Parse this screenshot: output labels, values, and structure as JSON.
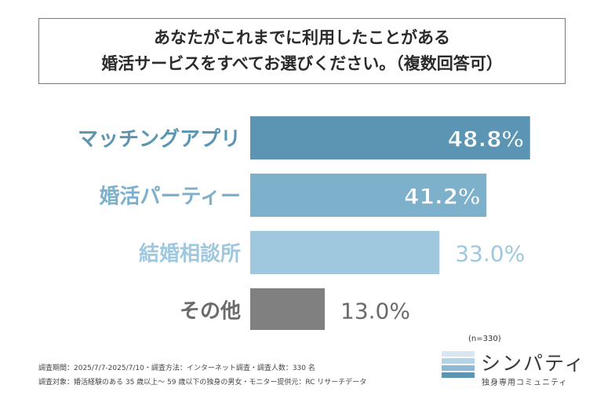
{
  "title": {
    "line1": "あなたがこれまでに利用したことがある",
    "line2": "婚活サービスをすべてお選びください。（複数回答可）"
  },
  "chart_data": {
    "type": "bar",
    "orientation": "horizontal",
    "categories": [
      "マッチングアプリ",
      "婚活パーティー",
      "結婚相談所",
      "その他"
    ],
    "values": [
      48.8,
      41.2,
      33.0,
      13.0
    ],
    "value_labels": [
      "48.8%",
      "41.2%",
      "33.0%",
      "13.0%"
    ],
    "bar_colors": [
      "#5b95b3",
      "#7cb0cb",
      "#9fc8de",
      "#808080"
    ],
    "label_colors": [
      "#5b95b3",
      "#7cb0cb",
      "#9fc8de",
      "#6b6b6b"
    ],
    "xlim": [
      0,
      50
    ],
    "grid": false
  },
  "footnotes": {
    "line1": "調査期間：2025/7/7-2025/7/10・調査方法：インターネット調査・調査人数：330 名",
    "line2": "調査対象：婚活経験のある 35 歳以上〜 59 歳以下の独身の男女・モニター提供元：RC リサーチデータ"
  },
  "sample_size": "(n=330)",
  "brand": {
    "name": "シンパティ",
    "tagline": "独身専用コミュニティ",
    "bar_colors": [
      "#d6e7f1",
      "#b4d3e5",
      "#8cbad4",
      "#5b95b3"
    ]
  }
}
